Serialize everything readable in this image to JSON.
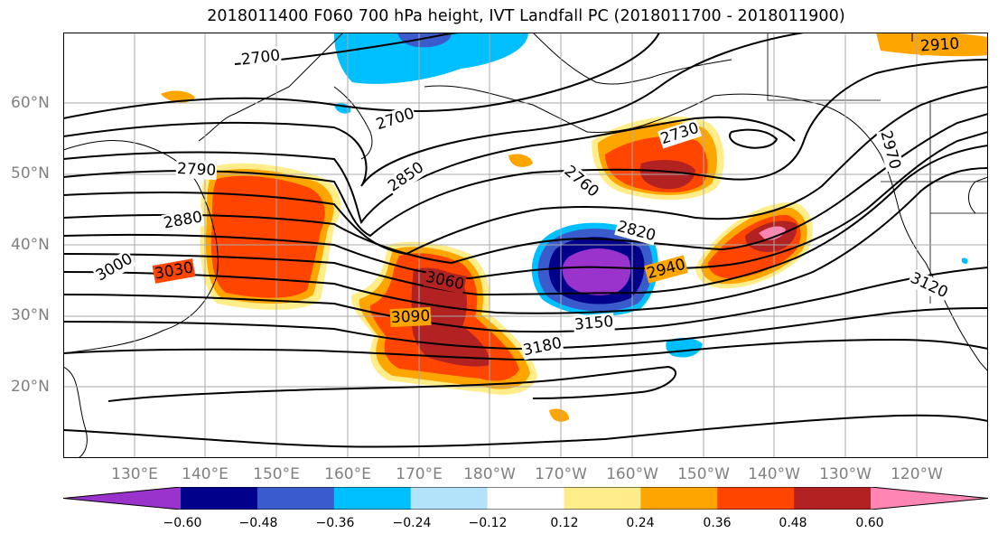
{
  "title": "2018011400 F060 700 hPa height, IVT Landfall PC (2018011700 - 2018011900)",
  "lat_labels": [
    "60°N",
    "50°N",
    "40°N",
    "30°N",
    "20°N"
  ],
  "lon_labels": [
    "130°E",
    "140°E",
    "150°E",
    "160°E",
    "170°E",
    "180°W",
    "170°W",
    "160°W",
    "150°W",
    "140°W",
    "130°W",
    "120°W"
  ],
  "map_extent": {
    "lon": [
      120,
      250
    ],
    "lat": [
      10,
      70
    ]
  },
  "contour_labels": [
    "2700",
    "2700",
    "2790",
    "2880",
    "2850",
    "2760",
    "2730",
    "2820",
    "2910",
    "2970",
    "3000",
    "3030",
    "3060",
    "3090",
    "2940",
    "3150",
    "3180",
    "3120"
  ],
  "colorbar": {
    "ticks": [
      "−0.60",
      "−0.48",
      "−0.36",
      "−0.24",
      "−0.12",
      "0.12",
      "0.24",
      "0.36",
      "0.48",
      "0.60"
    ],
    "levels": [
      -0.6,
      -0.48,
      -0.36,
      -0.24,
      -0.12,
      0.12,
      0.24,
      0.36,
      0.48,
      0.6
    ],
    "colors": [
      "#9933cc",
      "#00008b",
      "#3a5bcc",
      "#00bfff",
      "#b3e3fb",
      "#ffffff",
      "#ffed8a",
      "#ffa500",
      "#ff4500",
      "#b22222",
      "#ff85b2"
    ]
  }
}
